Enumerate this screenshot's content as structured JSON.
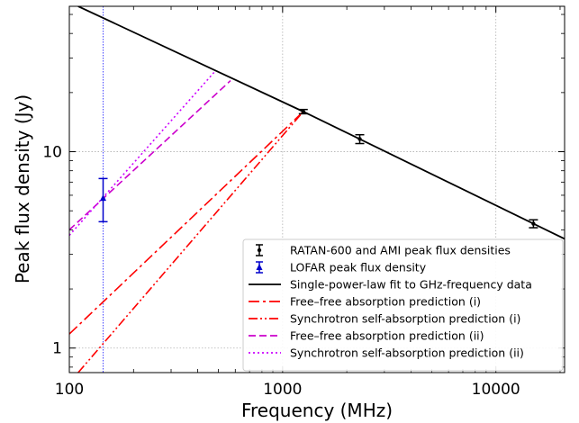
{
  "chart_data": {
    "type": "line",
    "xlabel": "Frequency (MHz)",
    "ylabel": "Peak flux density (Jy)",
    "xscale": "log",
    "yscale": "log",
    "xlim": [
      100,
      21000
    ],
    "ylim": [
      0.75,
      55
    ],
    "grid": true,
    "legend_position": "bottom-right",
    "x_ticks": [
      {
        "value": 100,
        "label": "100"
      },
      {
        "value": 1000,
        "label": "1000"
      },
      {
        "value": 10000,
        "label": "10000"
      }
    ],
    "y_ticks": [
      {
        "value": 1,
        "label": "1"
      },
      {
        "value": 10,
        "label": "10"
      }
    ],
    "reference_line": {
      "x": 144,
      "color": "#3333ff"
    },
    "errorbar_series": [
      {
        "name": "RATAN-600 and AMI peak flux densities",
        "color": "#000000",
        "marker": "dot",
        "points": [
          {
            "x": 1250,
            "y": 16.0,
            "yerr_low": 15.6,
            "yerr_high": 16.4
          },
          {
            "x": 2300,
            "y": 11.6,
            "yerr_low": 11.0,
            "yerr_high": 12.2
          },
          {
            "x": 15000,
            "y": 4.3,
            "yerr_low": 4.1,
            "yerr_high": 4.5
          }
        ]
      },
      {
        "name": "LOFAR peak flux density",
        "color": "#0000cc",
        "marker": "triangle",
        "points": [
          {
            "x": 144,
            "y": 5.8,
            "yerr_low": 4.4,
            "yerr_high": 7.3
          }
        ]
      }
    ],
    "line_series": [
      {
        "name": "Single-power-law fit to GHz-frequency data",
        "color": "#000000",
        "dash": "solid",
        "points": [
          [
            110,
            55
          ],
          [
            1250,
            16.0
          ],
          [
            21000,
            3.6
          ]
        ]
      },
      {
        "name": "Free–free absorption prediction (i)",
        "color": "#ff0000",
        "dash": "dashdot",
        "points": [
          [
            100,
            1.18
          ],
          [
            1250,
            16.0
          ]
        ]
      },
      {
        "name": "Synchrotron self-absorption prediction (i)",
        "color": "#ff0000",
        "dash": "dashdotdot",
        "points": [
          [
            110,
            0.75
          ],
          [
            1250,
            16.0
          ]
        ]
      },
      {
        "name": "Free–free absorption prediction (ii)",
        "color": "#cc00cc",
        "dash": "dashed",
        "points": [
          [
            100,
            4.0
          ],
          [
            570,
            23.0
          ]
        ]
      },
      {
        "name": "Synchrotron self-absorption prediction (ii)",
        "color": "#cc00ff",
        "dash": "dotted",
        "points": [
          [
            100,
            3.75
          ],
          [
            480,
            25.5
          ]
        ]
      }
    ],
    "legend_order": [
      {
        "ref": "errorbar",
        "index": 0
      },
      {
        "ref": "errorbar",
        "index": 1
      },
      {
        "ref": "line",
        "index": 0
      },
      {
        "ref": "line",
        "index": 1
      },
      {
        "ref": "line",
        "index": 2
      },
      {
        "ref": "line",
        "index": 3
      },
      {
        "ref": "line",
        "index": 4
      }
    ]
  }
}
